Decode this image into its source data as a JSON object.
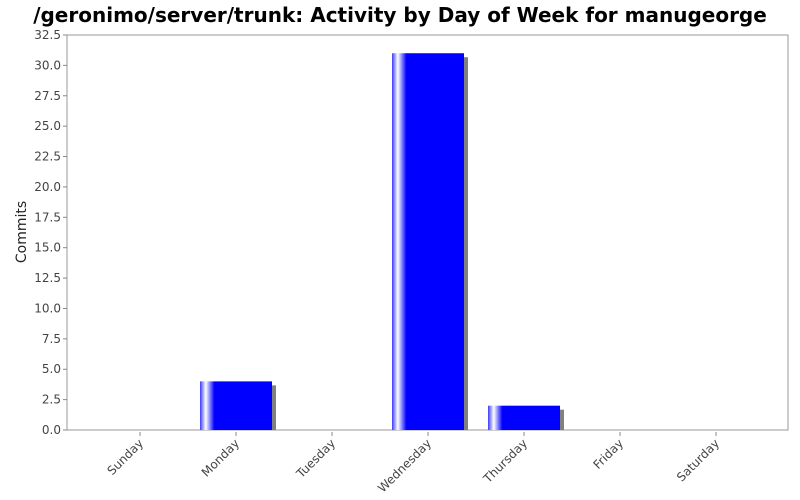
{
  "chart_data": {
    "type": "bar",
    "title": "/geronimo/server/trunk: Activity by Day of Week for manugeorge",
    "xlabel": "",
    "ylabel": "Commits",
    "categories": [
      "Sunday",
      "Monday",
      "Tuesday",
      "Wednesday",
      "Thursday",
      "Friday",
      "Saturday"
    ],
    "values": [
      0,
      4,
      0,
      31,
      2,
      0,
      0
    ],
    "ylim": [
      0,
      32.5
    ],
    "yticks": [
      "0.0",
      "2.5",
      "5.0",
      "7.5",
      "10.0",
      "12.5",
      "15.0",
      "17.5",
      "20.0",
      "22.5",
      "25.0",
      "27.5",
      "30.0",
      "32.5"
    ],
    "grid": false,
    "legend": "none",
    "colors": {
      "bar": "#0000ff",
      "bar_highlight": "#ffffff",
      "shadow": "#808080",
      "plot_border": "#999999",
      "background": "#ffffff"
    }
  }
}
